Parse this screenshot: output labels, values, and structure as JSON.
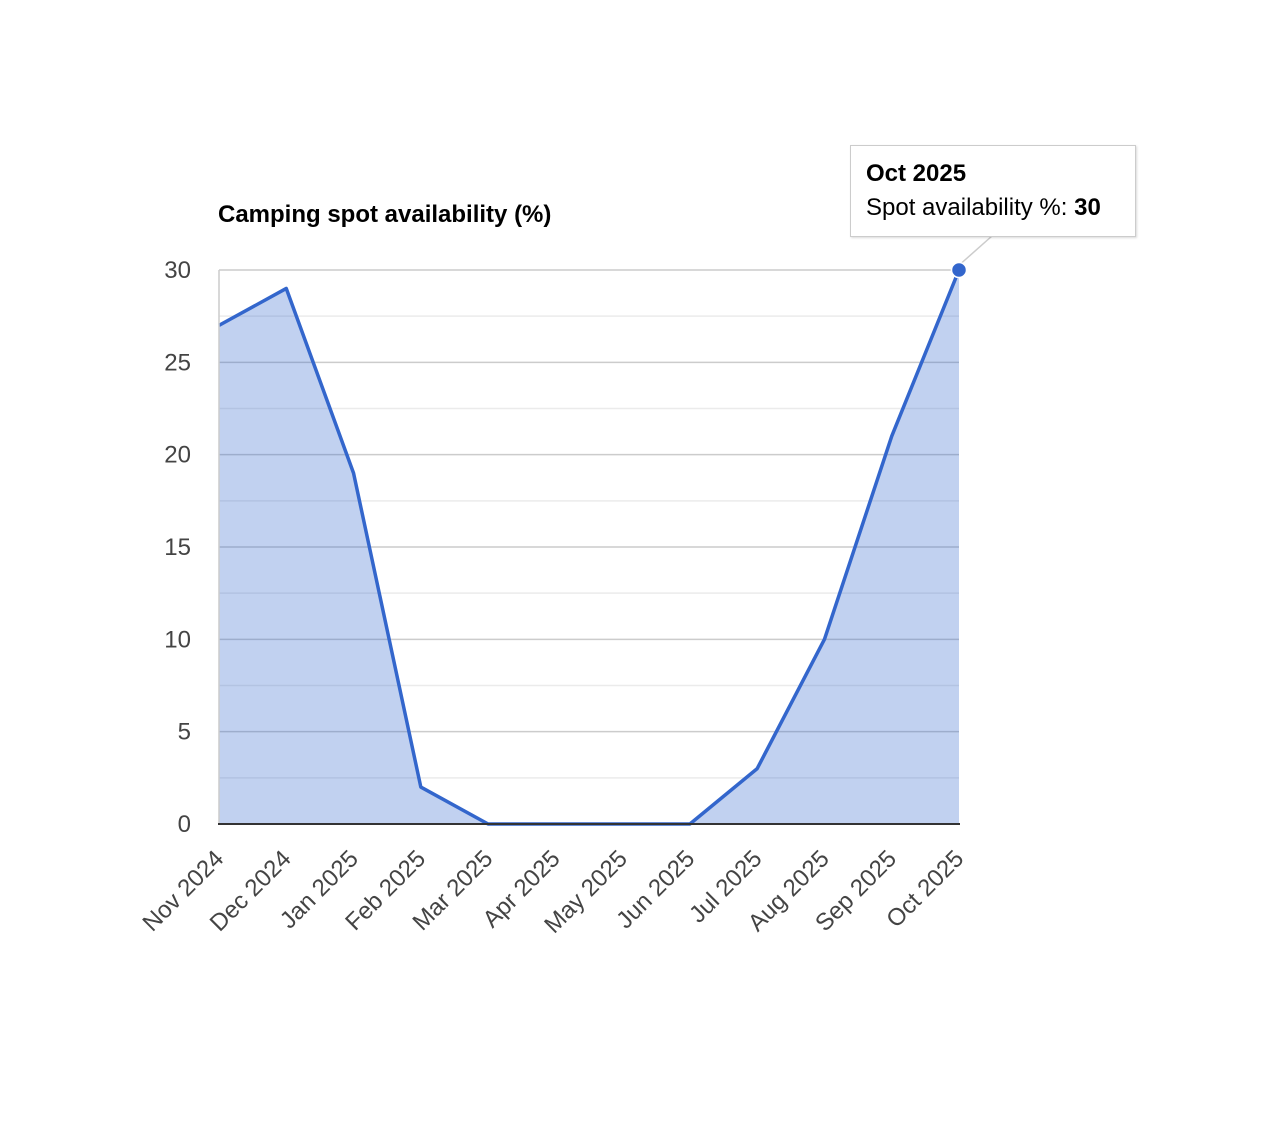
{
  "chart_data": {
    "type": "area",
    "title": "Camping spot availability (%)",
    "xlabel": "",
    "ylabel": "",
    "categories": [
      "Nov 2024",
      "Dec 2024",
      "Jan 2025",
      "Feb 2025",
      "Mar 2025",
      "Apr 2025",
      "May 2025",
      "Jun 2025",
      "Jul 2025",
      "Aug 2025",
      "Sep 2025",
      "Oct 2025"
    ],
    "series": [
      {
        "values": [
          27,
          29,
          19,
          2,
          0,
          0,
          0,
          0,
          3,
          10,
          21,
          30
        ],
        "color": "#3366cc"
      }
    ],
    "ylim": [
      0,
      30
    ],
    "yticks": [
      "0",
      "5",
      "10",
      "15",
      "20",
      "25",
      "30"
    ],
    "grid": true,
    "legend": "none"
  },
  "tooltip": {
    "title": "Oct 2025",
    "label": "Spot availability %:",
    "value": "30",
    "index": 11
  }
}
